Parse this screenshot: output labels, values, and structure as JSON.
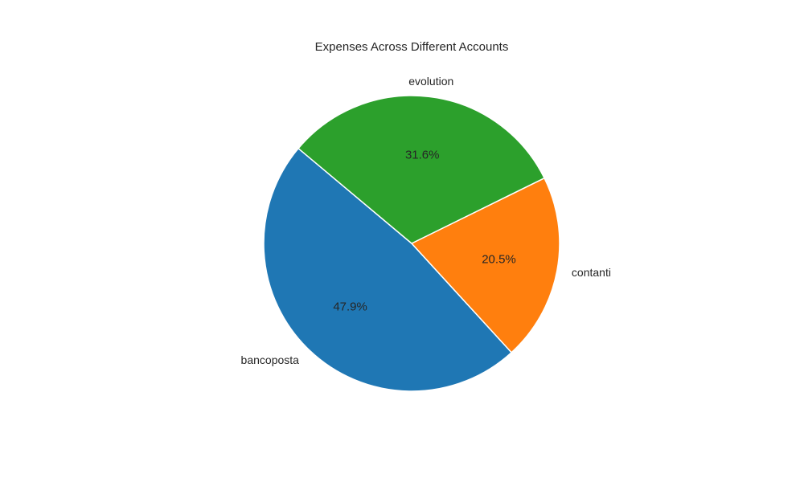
{
  "chart_data": {
    "type": "pie",
    "title": "Expenses Across Different Accounts",
    "categories": [
      "bancoposta",
      "contanti",
      "evolution"
    ],
    "values": [
      47.9,
      20.5,
      31.6
    ],
    "percent_labels": [
      "47.9%",
      "20.5%",
      "31.6%"
    ],
    "colors": [
      "#1f77b4",
      "#ff7f0e",
      "#2ca02c"
    ],
    "start_angle_deg": 140,
    "direction": "counterclockwise",
    "legend": "none"
  }
}
